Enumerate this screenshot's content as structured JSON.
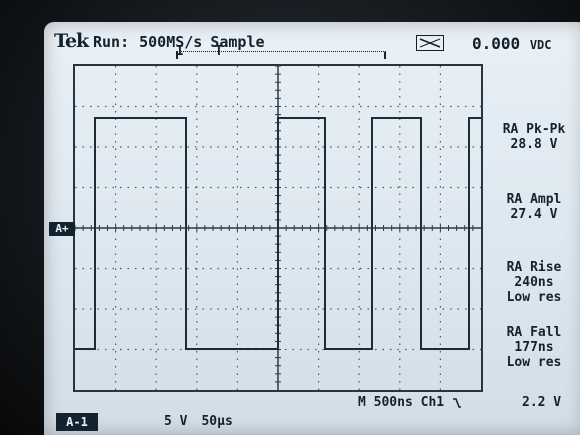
{
  "header": {
    "brand": "Tek",
    "run_state": "Run:",
    "sample_rate": "500MS/s",
    "acq_mode": "Sample",
    "trigger_marker": "T",
    "trigger_marker_left": "I",
    "coupling_icon": "dc-coupling-icon",
    "readout_value": "0.000",
    "readout_unit": "VDC"
  },
  "channel_marker": "A+",
  "measurements": [
    {
      "name": "RA Pk-Pk",
      "value": "28.8 V",
      "note": ""
    },
    {
      "name": "RA Ampl",
      "value": "27.4 V",
      "note": ""
    },
    {
      "name": "RA Rise",
      "value": "240ns",
      "note": "Low res"
    },
    {
      "name": "RA Fall",
      "value": "177ns",
      "note": "Low res"
    }
  ],
  "footer": {
    "timebase_readout": "M 500ns Ch1",
    "trigger_slope_icon": "falling-edge-icon",
    "trigger_level": "2.2 V",
    "channel_label": "A-1",
    "vertical_scale": "5 V",
    "horizontal_scale": "50µs"
  },
  "colors": {
    "screen": "#e2eaf1",
    "trace": "#1e2c36",
    "text": "#12222e"
  }
}
